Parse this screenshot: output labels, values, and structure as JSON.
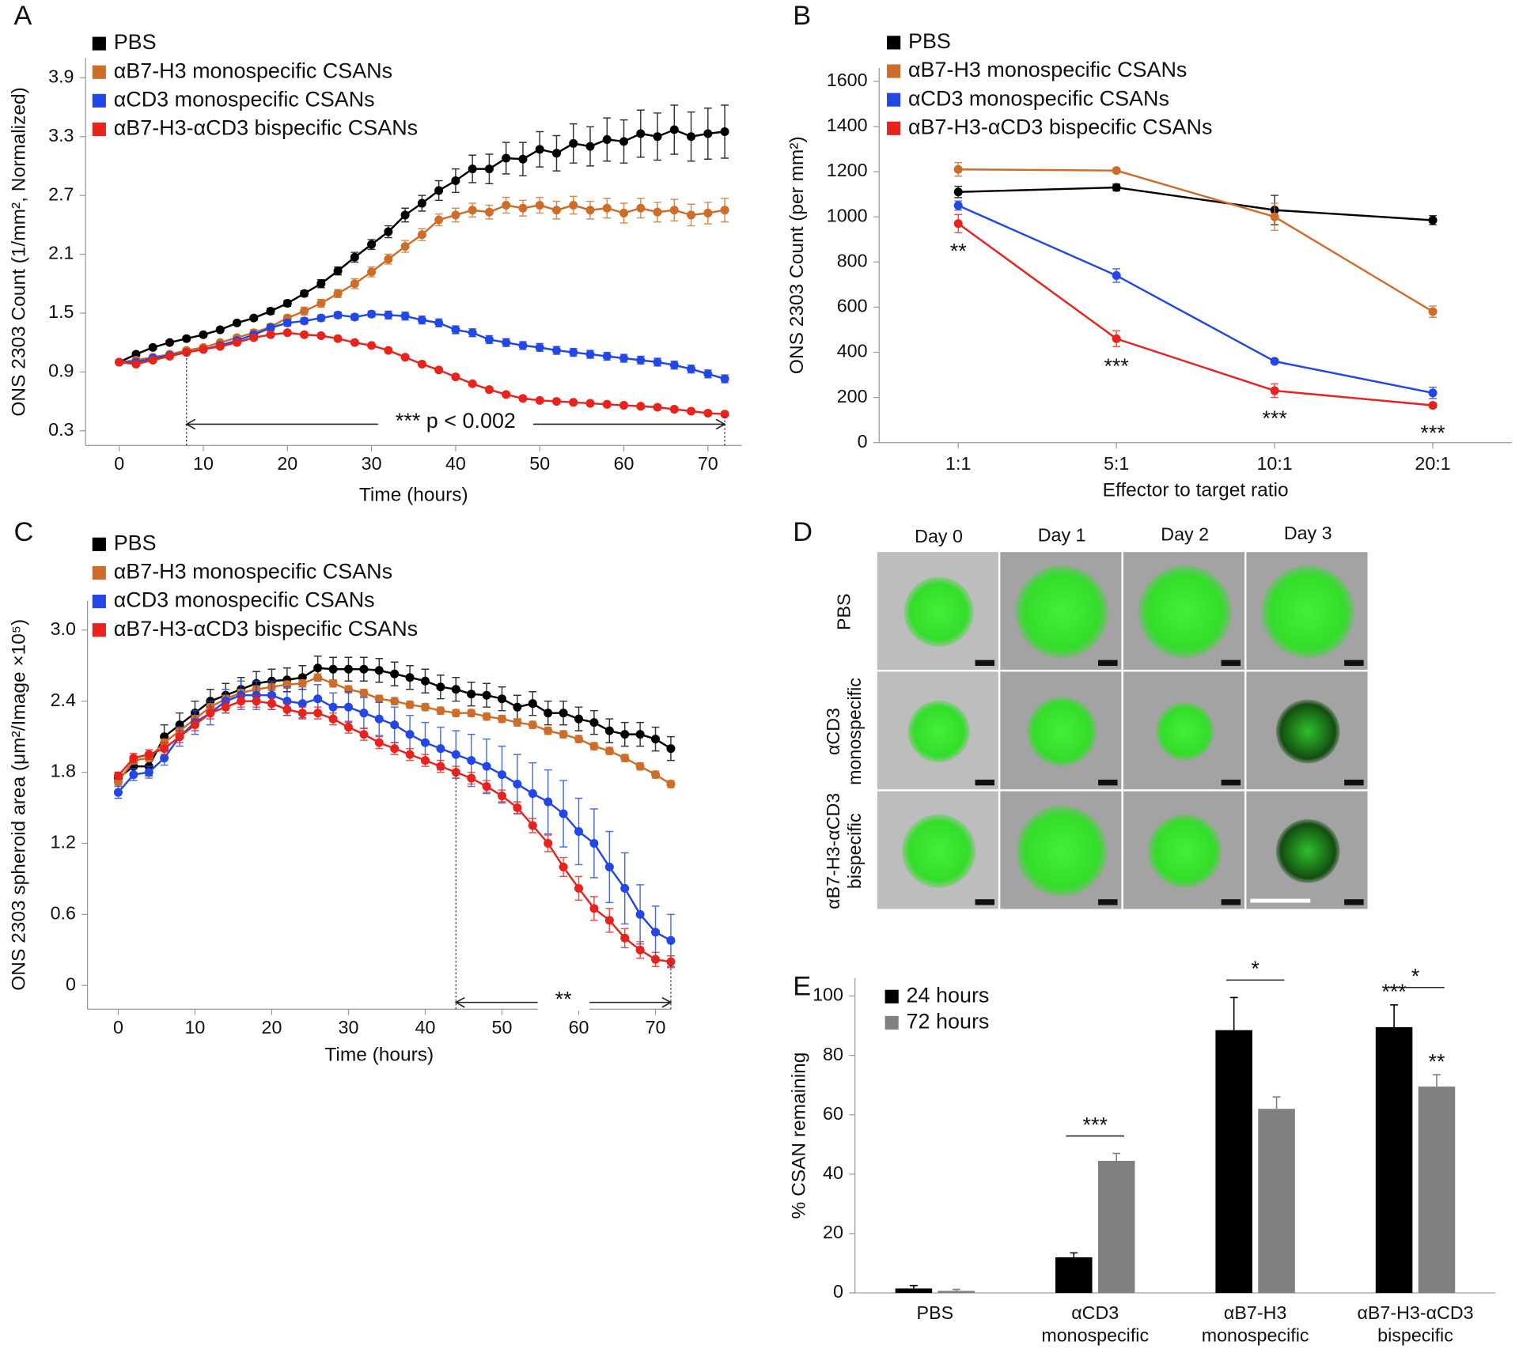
{
  "chart_data": [
    {
      "panel": "A",
      "type": "line",
      "ylabel": "ONS 2303 Count (1/mm², Normalized)",
      "xlabel": "Time (hours)",
      "x": [
        0,
        2,
        4,
        6,
        8,
        10,
        12,
        14,
        16,
        18,
        20,
        22,
        24,
        26,
        28,
        30,
        32,
        34,
        36,
        38,
        40,
        42,
        44,
        46,
        48,
        50,
        52,
        54,
        56,
        58,
        60,
        62,
        64,
        66,
        68,
        70,
        72
      ],
      "xlim": [
        -4,
        74
      ],
      "xticks": [
        0,
        10,
        20,
        30,
        40,
        50,
        60,
        70
      ],
      "ylim": [
        0.15,
        4.1
      ],
      "yticks": [
        0.3,
        0.9,
        1.5,
        2.1,
        2.7,
        3.3,
        3.9
      ],
      "series": [
        {
          "name": "PBS",
          "color": "#000000",
          "values": [
            1.0,
            1.08,
            1.15,
            1.2,
            1.24,
            1.28,
            1.33,
            1.4,
            1.45,
            1.52,
            1.6,
            1.7,
            1.8,
            1.93,
            2.07,
            2.2,
            2.33,
            2.5,
            2.62,
            2.75,
            2.85,
            2.97,
            2.97,
            3.08,
            3.07,
            3.17,
            3.13,
            3.23,
            3.2,
            3.27,
            3.25,
            3.33,
            3.3,
            3.37,
            3.3,
            3.33,
            3.35
          ],
          "errors": [
            0.02,
            0.02,
            0.02,
            0.02,
            0.02,
            0.02,
            0.02,
            0.02,
            0.02,
            0.03,
            0.03,
            0.03,
            0.04,
            0.04,
            0.05,
            0.05,
            0.06,
            0.07,
            0.08,
            0.1,
            0.12,
            0.14,
            0.15,
            0.16,
            0.17,
            0.18,
            0.18,
            0.2,
            0.2,
            0.22,
            0.22,
            0.24,
            0.24,
            0.25,
            0.25,
            0.26,
            0.27
          ]
        },
        {
          "name": "αB7-H3 monospecific CSANs",
          "color": "#cc6e2a",
          "values": [
            1.0,
            1.02,
            1.05,
            1.08,
            1.12,
            1.15,
            1.2,
            1.25,
            1.3,
            1.36,
            1.45,
            1.52,
            1.6,
            1.7,
            1.8,
            1.92,
            2.05,
            2.18,
            2.3,
            2.45,
            2.5,
            2.55,
            2.53,
            2.6,
            2.57,
            2.6,
            2.55,
            2.6,
            2.55,
            2.57,
            2.52,
            2.57,
            2.53,
            2.55,
            2.5,
            2.52,
            2.55
          ],
          "errors": [
            0.02,
            0.02,
            0.02,
            0.02,
            0.02,
            0.02,
            0.02,
            0.02,
            0.03,
            0.03,
            0.03,
            0.04,
            0.04,
            0.04,
            0.05,
            0.05,
            0.05,
            0.06,
            0.06,
            0.06,
            0.07,
            0.07,
            0.07,
            0.08,
            0.08,
            0.08,
            0.09,
            0.09,
            0.09,
            0.1,
            0.1,
            0.1,
            0.1,
            0.11,
            0.11,
            0.11,
            0.12
          ]
        },
        {
          "name": "αCD3 monospecific CSANs",
          "color": "#2247e6",
          "values": [
            1.0,
            1.0,
            1.04,
            1.07,
            1.1,
            1.13,
            1.17,
            1.22,
            1.28,
            1.35,
            1.4,
            1.42,
            1.45,
            1.48,
            1.46,
            1.49,
            1.48,
            1.47,
            1.43,
            1.4,
            1.33,
            1.3,
            1.23,
            1.2,
            1.17,
            1.15,
            1.12,
            1.1,
            1.08,
            1.06,
            1.04,
            1.02,
            1.0,
            0.97,
            0.93,
            0.88,
            0.83
          ],
          "errors": [
            0.02,
            0.02,
            0.02,
            0.02,
            0.02,
            0.02,
            0.02,
            0.02,
            0.02,
            0.03,
            0.03,
            0.03,
            0.03,
            0.03,
            0.03,
            0.03,
            0.04,
            0.04,
            0.04,
            0.04,
            0.04,
            0.04,
            0.04,
            0.04,
            0.04,
            0.04,
            0.04,
            0.04,
            0.04,
            0.04,
            0.04,
            0.04,
            0.04,
            0.04,
            0.04,
            0.04,
            0.04
          ]
        },
        {
          "name": "αB7-H3-αCD3 bispecific CSANs",
          "color": "#e8221c",
          "values": [
            1.0,
            0.98,
            1.02,
            1.06,
            1.1,
            1.13,
            1.16,
            1.2,
            1.25,
            1.28,
            1.3,
            1.28,
            1.27,
            1.24,
            1.2,
            1.17,
            1.12,
            1.05,
            0.98,
            0.92,
            0.85,
            0.78,
            0.72,
            0.67,
            0.63,
            0.61,
            0.6,
            0.59,
            0.58,
            0.57,
            0.56,
            0.55,
            0.54,
            0.52,
            0.5,
            0.48,
            0.47
          ],
          "errors": [
            0.02,
            0.02,
            0.02,
            0.02,
            0.02,
            0.02,
            0.02,
            0.02,
            0.02,
            0.02,
            0.02,
            0.02,
            0.02,
            0.02,
            0.02,
            0.02,
            0.02,
            0.02,
            0.02,
            0.02,
            0.02,
            0.02,
            0.02,
            0.02,
            0.02,
            0.02,
            0.02,
            0.02,
            0.02,
            0.02,
            0.02,
            0.02,
            0.02,
            0.02,
            0.02,
            0.02,
            0.02
          ]
        }
      ],
      "annotations": [
        {
          "text": "*** p < 0.002",
          "span": [
            8,
            72
          ]
        }
      ]
    },
    {
      "panel": "B",
      "type": "line",
      "ylabel": "ONS 2303 Count (per mm²)",
      "xlabel": "Effector to target ratio",
      "categories": [
        "1:1",
        "5:1",
        "10:1",
        "20:1"
      ],
      "ylim": [
        0,
        1660
      ],
      "yticks": [
        0,
        200,
        400,
        600,
        800,
        1000,
        1200,
        1400,
        1600
      ],
      "series": [
        {
          "name": "PBS",
          "color": "#000000",
          "values": [
            1110,
            1130,
            1030,
            985
          ],
          "errors": [
            25,
            15,
            65,
            20
          ]
        },
        {
          "name": "αB7-H3 monospecific CSANs",
          "color": "#cc6e2a",
          "values": [
            1210,
            1205,
            1000,
            580
          ],
          "errors": [
            30,
            10,
            60,
            25
          ]
        },
        {
          "name": "αCD3 monospecific CSANs",
          "color": "#2247e6",
          "values": [
            1050,
            740,
            360,
            220
          ],
          "errors": [
            20,
            30,
            10,
            25
          ]
        },
        {
          "name": "αB7-H3-αCD3 bispecific CSANs",
          "color": "#e8221c",
          "values": [
            970,
            460,
            230,
            165
          ],
          "errors": [
            40,
            35,
            30,
            10
          ]
        }
      ],
      "annotations": [
        {
          "text": "**",
          "category": 0
        },
        {
          "text": "***",
          "category": 1
        },
        {
          "text": "***",
          "category": 2
        },
        {
          "text": "***",
          "category": 3
        }
      ]
    },
    {
      "panel": "C",
      "type": "line",
      "ylabel": "ONS 2303 spheroid area (μm²/Image ×10⁵)",
      "xlabel": "Time (hours)",
      "x": [
        0,
        2,
        4,
        6,
        8,
        10,
        12,
        14,
        16,
        18,
        20,
        22,
        24,
        26,
        28,
        30,
        32,
        34,
        36,
        38,
        40,
        42,
        44,
        46,
        48,
        50,
        52,
        54,
        56,
        58,
        60,
        62,
        64,
        66,
        68,
        70,
        72
      ],
      "xlim": [
        -4,
        72
      ],
      "xticks": [
        0,
        10,
        20,
        30,
        40,
        50,
        60,
        70
      ],
      "ylim": [
        -0.2,
        3.25
      ],
      "yticks": [
        0,
        0.6,
        1.2,
        1.8,
        2.4,
        {
          "value": 3,
          "label": "3.0"
        }
      ],
      "series": [
        {
          "name": "PBS",
          "color": "#000000",
          "values": [
            1.75,
            1.85,
            1.85,
            2.1,
            2.2,
            2.3,
            2.4,
            2.45,
            2.5,
            2.55,
            2.57,
            2.58,
            2.6,
            2.68,
            2.67,
            2.67,
            2.67,
            2.66,
            2.63,
            2.6,
            2.57,
            2.52,
            2.5,
            2.46,
            2.45,
            2.42,
            2.35,
            2.38,
            2.3,
            2.3,
            2.25,
            2.22,
            2.15,
            2.12,
            2.12,
            2.08,
            2.0
          ],
          "errors": [
            0.05,
            0.08,
            0.08,
            0.1,
            0.1,
            0.1,
            0.1,
            0.1,
            0.1,
            0.1,
            0.1,
            0.1,
            0.1,
            0.1,
            0.1,
            0.1,
            0.1,
            0.1,
            0.1,
            0.1,
            0.1,
            0.1,
            0.1,
            0.1,
            0.1,
            0.1,
            0.1,
            0.1,
            0.1,
            0.1,
            0.1,
            0.1,
            0.1,
            0.1,
            0.1,
            0.1,
            0.1
          ]
        },
        {
          "name": "αB7-H3 monospecific CSANs",
          "color": "#cc6e2a",
          "values": [
            1.72,
            1.9,
            1.92,
            2.05,
            2.15,
            2.25,
            2.35,
            2.42,
            2.47,
            2.5,
            2.52,
            2.54,
            2.55,
            2.6,
            2.55,
            2.5,
            2.47,
            2.42,
            2.4,
            2.37,
            2.35,
            2.32,
            2.3,
            2.3,
            2.27,
            2.25,
            2.22,
            2.2,
            2.15,
            2.12,
            2.08,
            2.02,
            1.98,
            1.92,
            1.85,
            1.78,
            1.7
          ],
          "errors": [
            0.03,
            0.03,
            0.03,
            0.03,
            0.03,
            0.03,
            0.03,
            0.03,
            0.03,
            0.03,
            0.03,
            0.03,
            0.03,
            0.03,
            0.03,
            0.03,
            0.03,
            0.03,
            0.03,
            0.03,
            0.03,
            0.03,
            0.03,
            0.03,
            0.03,
            0.03,
            0.03,
            0.03,
            0.03,
            0.03,
            0.03,
            0.03,
            0.03,
            0.03,
            0.03,
            0.03,
            0.03
          ]
        },
        {
          "name": "αCD3 monospecific CSANs",
          "color": "#2247e6",
          "values": [
            1.63,
            1.78,
            1.8,
            1.92,
            2.1,
            2.22,
            2.3,
            2.4,
            2.45,
            2.45,
            2.45,
            2.4,
            2.38,
            2.42,
            2.35,
            2.35,
            2.3,
            2.25,
            2.2,
            2.12,
            2.05,
            2.0,
            1.95,
            1.9,
            1.85,
            1.78,
            1.7,
            1.62,
            1.55,
            1.45,
            1.3,
            1.2,
            1.0,
            0.82,
            0.6,
            0.45,
            0.38
          ],
          "errors": [
            0.05,
            0.05,
            0.05,
            0.06,
            0.08,
            0.1,
            0.1,
            0.1,
            0.12,
            0.12,
            0.12,
            0.12,
            0.12,
            0.12,
            0.12,
            0.13,
            0.13,
            0.14,
            0.15,
            0.16,
            0.17,
            0.18,
            0.2,
            0.22,
            0.23,
            0.24,
            0.25,
            0.26,
            0.27,
            0.28,
            0.28,
            0.29,
            0.3,
            0.3,
            0.25,
            0.22,
            0.22
          ]
        },
        {
          "name": "αB7-H3-αCD3 bispecific CSANs",
          "color": "#e8221c",
          "values": [
            1.77,
            1.92,
            1.95,
            2.0,
            2.1,
            2.2,
            2.3,
            2.35,
            2.4,
            2.4,
            2.38,
            2.33,
            2.3,
            2.3,
            2.25,
            2.18,
            2.12,
            2.05,
            2.0,
            1.95,
            1.9,
            1.85,
            1.8,
            1.75,
            1.68,
            1.6,
            1.5,
            1.35,
            1.2,
            1.0,
            0.82,
            0.65,
            0.55,
            0.4,
            0.3,
            0.22,
            0.2
          ],
          "errors": [
            0.03,
            0.04,
            0.04,
            0.05,
            0.05,
            0.05,
            0.05,
            0.05,
            0.05,
            0.05,
            0.05,
            0.05,
            0.05,
            0.05,
            0.05,
            0.05,
            0.05,
            0.05,
            0.05,
            0.05,
            0.05,
            0.05,
            0.05,
            0.05,
            0.05,
            0.05,
            0.05,
            0.06,
            0.07,
            0.08,
            0.1,
            0.1,
            0.1,
            0.08,
            0.07,
            0.06,
            0.05
          ]
        }
      ],
      "annotations": [
        {
          "text": "**",
          "span": [
            44,
            72
          ]
        }
      ]
    },
    {
      "panel": "D",
      "type": "image",
      "columns": [
        "Day 0",
        "Day 1",
        "Day 2",
        "Day 3"
      ],
      "rows": [
        [
          "PBS"
        ],
        [
          "αCD3",
          "monospecific"
        ],
        [
          "αB7-H3-αCD3",
          "bispecific"
        ]
      ]
    },
    {
      "panel": "E",
      "type": "bar",
      "ylabel": "% CSAN remaining",
      "categories": [
        [
          "PBS"
        ],
        [
          "αCD3",
          "monospecific"
        ],
        [
          "αB7-H3",
          "monospecific"
        ],
        [
          "αB7-H3-αCD3",
          "bispecific"
        ]
      ],
      "ylim": [
        0,
        106
      ],
      "yticks": [
        0,
        20,
        40,
        60,
        80,
        100
      ],
      "series": [
        {
          "name": "24 hours",
          "color": "#000000",
          "values": [
            1.5,
            12,
            88.5,
            89.5
          ],
          "errors": [
            1,
            1.5,
            11,
            7.5
          ]
        },
        {
          "name": "72 hours",
          "color": "#808080",
          "values": [
            0.7,
            44.5,
            62,
            69.5
          ],
          "errors": [
            0.5,
            2.5,
            4,
            4
          ]
        }
      ],
      "annotations": [
        {
          "text": "***",
          "category": 1,
          "bracket": true
        },
        {
          "text": "*",
          "category": 2,
          "bracket": true
        },
        {
          "text": "*",
          "category": 3,
          "bracket": true
        },
        {
          "text": "***",
          "category": 3,
          "series": 0
        },
        {
          "text": "**",
          "category": 3,
          "series": 1
        }
      ]
    }
  ]
}
